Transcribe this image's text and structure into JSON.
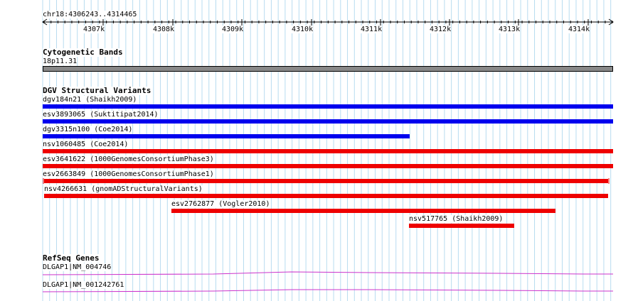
{
  "ruler": {
    "position": "chr18:4306243..4314465",
    "ticks": [
      "4307k",
      "4308k",
      "4309k",
      "4310k",
      "4311k",
      "4312k",
      "4313k",
      "4314k"
    ]
  },
  "cytobands": {
    "title": "Cytogenetic Bands",
    "band": "18p11.31"
  },
  "dgv": {
    "title": "DGV Structural Variants",
    "features": [
      {
        "label": "dgv184n21 (Shaikh2009)",
        "color": "#0000ee"
      },
      {
        "label": "esv3893065 (Suktitipat2014)",
        "color": "#0000ee"
      },
      {
        "label": "dgv3315n100 (Coe2014)",
        "color": "#0000ee"
      },
      {
        "label": "nsv1060485 (Coe2014)",
        "color": "#ee0000"
      },
      {
        "label": "esv3641622 (1000GenomesConsortiumPhase3)",
        "color": "#ee0000"
      },
      {
        "label": "esv2663849 (1000GenomesConsortiumPhase1)",
        "color": "#ee0000"
      },
      {
        "label": "nsv4266631 (gnomADStructuralVariants)",
        "color": "#ee0000"
      },
      {
        "label": "esv2762877 (Vogler2010)",
        "color": "#ee0000"
      },
      {
        "label": "nsv517765 (Shaikh2009)",
        "color": "#ee0000"
      }
    ]
  },
  "refseq": {
    "title": "RefSeq Genes",
    "genes": [
      {
        "label": "DLGAP1|NM_004746",
        "color": "#cc33cc"
      },
      {
        "label": "DLGAP1|NM_001242761",
        "color": "#cc33cc"
      }
    ]
  }
}
